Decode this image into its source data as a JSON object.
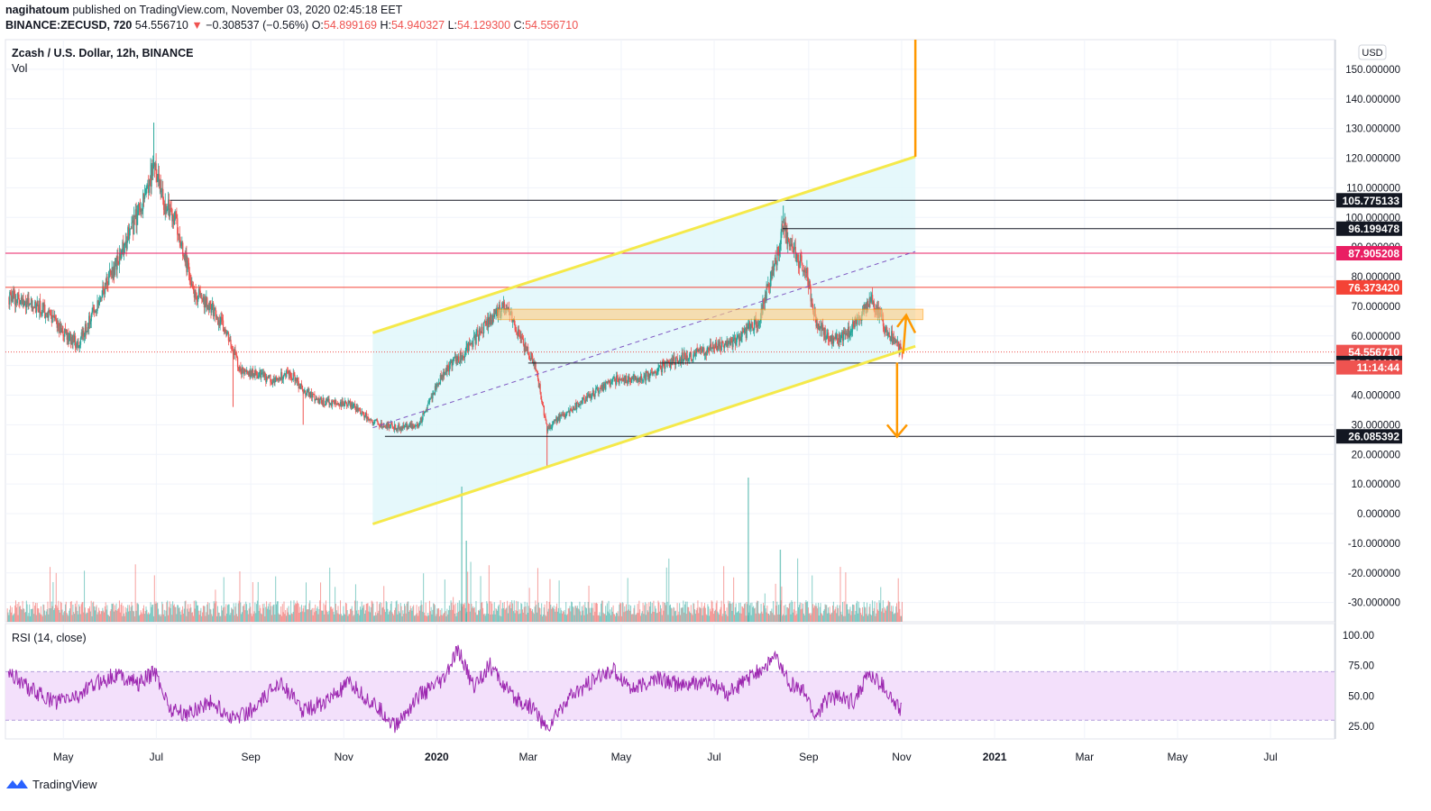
{
  "header": {
    "author": "nagihatoum",
    "published_text": "published on TradingView.com, November 03, 2020 02:45:18 EET",
    "symbol_line": "BINANCE:ZECUSD, 720",
    "last_price": "54.556710",
    "change_arrow": "▼",
    "change_text": "−0.308537 (−0.56%)",
    "o_label": "O:",
    "o_value": "54.899169",
    "h_label": "H:",
    "h_value": "54.940327",
    "l_label": "L:",
    "l_value": "54.129300",
    "c_label": "C:",
    "c_value": "54.556710"
  },
  "footer": {
    "brand": "TradingView"
  },
  "colors": {
    "up": "#26a69a",
    "down": "#ef5350",
    "channel": "#f5e94a",
    "channel_fill": "#e0f7fa",
    "zone": "#ffcc80",
    "arrow": "#ff9800",
    "rsi": "#9c27b0",
    "rsi_band": "#f3e0fb",
    "pink_line": "#e91e63"
  },
  "chart_data": {
    "type": "candlestick",
    "title": "Zcash / U.S. Dollar, 12h, BINANCE",
    "volume_label": "Vol",
    "currency_badge": "USD",
    "y_ticks": [
      "150.000000",
      "140.000000",
      "130.000000",
      "120.000000",
      "110.000000",
      "100.000000",
      "90.000000",
      "80.000000",
      "70.000000",
      "60.000000",
      "50.000000",
      "40.000000",
      "30.000000",
      "20.000000",
      "10.000000",
      "0.000000",
      "-10.000000",
      "-20.000000",
      "-30.000000"
    ],
    "ylim": [
      -36.5,
      160
    ],
    "x_ticks": [
      "May",
      "Jul",
      "Sep",
      "Nov",
      "2020",
      "Mar",
      "May",
      "Jul",
      "Sep",
      "Nov",
      "2021",
      "Mar",
      "May",
      "Jul"
    ],
    "x_range": [
      "2019-03-24",
      "2021-08-12"
    ],
    "price_path": [
      [
        "2019-03-26",
        73
      ],
      [
        "2019-04-15",
        70
      ],
      [
        "2019-04-30",
        62
      ],
      [
        "2019-05-10",
        57
      ],
      [
        "2019-05-22",
        70
      ],
      [
        "2019-06-05",
        85
      ],
      [
        "2019-06-15",
        97
      ],
      [
        "2019-06-25",
        110
      ],
      [
        "2019-06-30",
        118
      ],
      [
        "2019-07-05",
        105
      ],
      [
        "2019-07-10",
        102
      ],
      [
        "2019-07-15",
        96
      ],
      [
        "2019-07-25",
        75
      ],
      [
        "2019-08-05",
        70
      ],
      [
        "2019-08-15",
        62
      ],
      [
        "2019-08-25",
        48
      ],
      [
        "2019-09-05",
        47
      ],
      [
        "2019-09-15",
        45
      ],
      [
        "2019-09-25",
        48
      ],
      [
        "2019-10-05",
        42
      ],
      [
        "2019-10-15",
        38
      ],
      [
        "2019-11-05",
        37
      ],
      [
        "2019-11-20",
        31
      ],
      [
        "2019-12-05",
        29
      ],
      [
        "2019-12-20",
        30
      ],
      [
        "2020-01-05",
        48
      ],
      [
        "2020-01-20",
        55
      ],
      [
        "2020-02-05",
        66
      ],
      [
        "2020-02-15",
        70
      ],
      [
        "2020-02-25",
        58
      ],
      [
        "2020-03-05",
        51
      ],
      [
        "2020-03-13",
        28
      ],
      [
        "2020-03-20",
        32
      ],
      [
        "2020-04-05",
        38
      ],
      [
        "2020-04-25",
        45
      ],
      [
        "2020-05-15",
        46
      ],
      [
        "2020-06-05",
        52
      ],
      [
        "2020-06-25",
        55
      ],
      [
        "2020-07-15",
        58
      ],
      [
        "2020-07-30",
        66
      ],
      [
        "2020-08-10",
        85
      ],
      [
        "2020-08-15",
        98
      ],
      [
        "2020-08-20",
        90
      ],
      [
        "2020-08-30",
        82
      ],
      [
        "2020-09-05",
        65
      ],
      [
        "2020-09-15",
        58
      ],
      [
        "2020-09-25",
        60
      ],
      [
        "2020-10-05",
        67
      ],
      [
        "2020-10-12",
        72
      ],
      [
        "2020-10-20",
        64
      ],
      [
        "2020-10-28",
        57
      ],
      [
        "2020-11-01",
        54.56
      ]
    ],
    "horizontal_levels": [
      {
        "label": "105.775133",
        "value": 105.775133,
        "from": "2019-07-10",
        "color": "#131722",
        "badge_bg": "#131722"
      },
      {
        "label": "96.199478",
        "value": 96.199478,
        "from": "2020-08-15",
        "color": "#131722",
        "badge_bg": "#131722"
      },
      {
        "label": "87.905208",
        "value": 87.905208,
        "from": "2019-03-24",
        "color": "#e91e63",
        "badge_bg": "#e91e63"
      },
      {
        "label": "76.373420",
        "value": 76.37342,
        "from": "2019-03-24",
        "color": "#f44336",
        "badge_bg": "#f44336"
      },
      {
        "label": "54.556710",
        "value": 54.55671,
        "from": "2019-03-24",
        "color": "#ef5350",
        "badge_bg": "#ef5350",
        "dotted": true
      },
      {
        "label": "50.841116",
        "value": 50.841116,
        "from": "2020-03-01",
        "color": "#131722",
        "badge_bg": "#131722"
      },
      {
        "label": "26.085392",
        "value": 26.085392,
        "from": "2019-11-28",
        "color": "#131722",
        "badge_bg": "#131722"
      }
    ],
    "countdown_label": "11:14:44",
    "channel": {
      "start": "2019-11-20",
      "end": "2020-11-10",
      "upper": [
        61,
        120.5
      ],
      "lower": [
        -3.5,
        56.5
      ],
      "mid": [
        29,
        88.5
      ]
    },
    "zone": {
      "from": "2020-02-10",
      "to": "2020-11-15",
      "top": 69,
      "bottom": 65.5
    },
    "rsi": {
      "label": "RSI (14, close)",
      "ticks": [
        "100.00",
        "75.00",
        "50.00",
        "25.00"
      ],
      "upper_band": 70,
      "lower_band": 30,
      "path": [
        [
          "2019-03-26",
          70
        ],
        [
          "2019-04-10",
          55
        ],
        [
          "2019-04-25",
          45
        ],
        [
          "2019-05-10",
          50
        ],
        [
          "2019-05-25",
          62
        ],
        [
          "2019-06-05",
          68
        ],
        [
          "2019-06-20",
          60
        ],
        [
          "2019-06-30",
          70
        ],
        [
          "2019-07-10",
          40
        ],
        [
          "2019-07-20",
          35
        ],
        [
          "2019-08-05",
          45
        ],
        [
          "2019-08-20",
          32
        ],
        [
          "2019-09-05",
          40
        ],
        [
          "2019-09-20",
          63
        ],
        [
          "2019-10-05",
          38
        ],
        [
          "2019-10-20",
          45
        ],
        [
          "2019-11-05",
          60
        ],
        [
          "2019-11-25",
          38
        ],
        [
          "2019-12-05",
          25
        ],
        [
          "2019-12-20",
          50
        ],
        [
          "2020-01-05",
          62
        ],
        [
          "2020-01-15",
          88
        ],
        [
          "2020-01-25",
          58
        ],
        [
          "2020-02-05",
          75
        ],
        [
          "2020-02-20",
          48
        ],
        [
          "2020-03-05",
          40
        ],
        [
          "2020-03-13",
          22
        ],
        [
          "2020-03-25",
          45
        ],
        [
          "2020-04-10",
          60
        ],
        [
          "2020-04-25",
          72
        ],
        [
          "2020-05-10",
          55
        ],
        [
          "2020-05-25",
          65
        ],
        [
          "2020-06-10",
          58
        ],
        [
          "2020-06-25",
          62
        ],
        [
          "2020-07-10",
          52
        ],
        [
          "2020-07-30",
          70
        ],
        [
          "2020-08-10",
          82
        ],
        [
          "2020-08-20",
          60
        ],
        [
          "2020-08-30",
          52
        ],
        [
          "2020-09-05",
          33
        ],
        [
          "2020-09-15",
          50
        ],
        [
          "2020-09-30",
          45
        ],
        [
          "2020-10-10",
          68
        ],
        [
          "2020-10-20",
          58
        ],
        [
          "2020-10-28",
          42
        ],
        [
          "2020-11-01",
          38
        ]
      ]
    }
  }
}
